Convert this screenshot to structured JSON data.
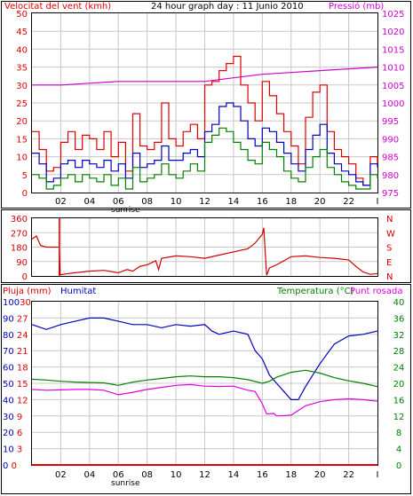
{
  "header": {
    "wind_label": "Velocitat del vent (kmh)",
    "graph_title": "24 hour graph day : 11 Junio 2010",
    "pressure_label": "Pressió (mb)"
  },
  "bottom_header": {
    "rain_label": "Pluja (mm)",
    "humidity_label": "Humitat",
    "temperature_label": "Temperatura (°C)",
    "dewpoint_label": "Punt rosada"
  },
  "x_axis": {
    "labels": [
      "02",
      "04",
      "06",
      "08",
      "10",
      "12",
      "14",
      "16",
      "18",
      "20",
      "22",
      "I"
    ],
    "sunrise_label": "sunrise"
  },
  "colors": {
    "wind_max": "#e00000",
    "wind_avg": "#0000c0",
    "wind_min": "#008000",
    "pressure": "#d000d0",
    "direction": "#d00000",
    "humidity": "#0000c0",
    "temperature": "#008000",
    "dewpoint": "#e000e0",
    "rain": "#e00000",
    "grid": "#c8c8c8"
  },
  "chart_data": [
    {
      "type": "line",
      "title": "24 hour graph day : 11 Junio 2010",
      "xlabel": "",
      "ylabel": "Velocitat del vent (kmh)",
      "y2label": "Pressió (mb)",
      "x_ticks": [
        "02",
        "04",
        "06",
        "08",
        "10",
        "12",
        "14",
        "16",
        "18",
        "20",
        "22",
        "I"
      ],
      "ylim": [
        0,
        50
      ],
      "y_ticks": [
        0,
        5,
        10,
        15,
        20,
        25,
        30,
        35,
        40,
        45,
        50
      ],
      "y2lim": [
        975,
        1025
      ],
      "y2_ticks": [
        975,
        980,
        985,
        990,
        995,
        1000,
        1005,
        1010,
        1015,
        1020,
        1025
      ],
      "x_range_hours": [
        0,
        24
      ],
      "grid": true,
      "series": [
        {
          "axis": "left",
          "color": "#e00000",
          "x": [
            0,
            0.5,
            1,
            1.5,
            2,
            2.5,
            3,
            3.5,
            4,
            4.5,
            5,
            5.5,
            6,
            6.5,
            7,
            7.5,
            8,
            8.5,
            9,
            9.5,
            10,
            10.5,
            11,
            11.5,
            12,
            12.5,
            13,
            13.5,
            14,
            14.5,
            15,
            15.5,
            16,
            16.5,
            17,
            17.5,
            18,
            18.5,
            19,
            19.5,
            20,
            20.5,
            21,
            21.5,
            22,
            22.5,
            23,
            23.5,
            24
          ],
          "values": [
            17,
            12,
            6,
            7,
            14,
            17,
            12,
            16,
            15,
            12,
            17,
            10,
            14,
            6,
            22,
            13,
            12,
            14,
            25,
            15,
            13,
            17,
            19,
            15,
            30,
            31,
            34,
            36,
            38,
            30,
            25,
            20,
            31,
            27,
            22,
            17,
            13,
            8,
            21,
            28,
            30,
            17,
            12,
            10,
            8,
            4,
            2,
            10,
            8
          ]
        },
        {
          "axis": "left",
          "color": "#0000c0",
          "x": [
            0,
            0.5,
            1,
            1.5,
            2,
            2.5,
            3,
            3.5,
            4,
            4.5,
            5,
            5.5,
            6,
            6.5,
            7,
            7.5,
            8,
            8.5,
            9,
            9.5,
            10,
            10.5,
            11,
            11.5,
            12,
            12.5,
            13,
            13.5,
            14,
            14.5,
            15,
            15.5,
            16,
            16.5,
            17,
            17.5,
            18,
            18.5,
            19,
            19.5,
            20,
            20.5,
            21,
            21.5,
            22,
            22.5,
            23,
            23.5,
            24
          ],
          "values": [
            11,
            8,
            3,
            4,
            8,
            9,
            7,
            9,
            8,
            7,
            9,
            6,
            8,
            4,
            11,
            7,
            8,
            9,
            13,
            9,
            9,
            11,
            12,
            10,
            17,
            19,
            24,
            25,
            24,
            20,
            15,
            13,
            18,
            17,
            14,
            11,
            8,
            6,
            12,
            16,
            19,
            11,
            8,
            6,
            5,
            3,
            2,
            8,
            7
          ]
        },
        {
          "axis": "left",
          "color": "#008000",
          "x": [
            0,
            0.5,
            1,
            1.5,
            2,
            2.5,
            3,
            3.5,
            4,
            4.5,
            5,
            5.5,
            6,
            6.5,
            7,
            7.5,
            8,
            8.5,
            9,
            9.5,
            10,
            10.5,
            11,
            11.5,
            12,
            12.5,
            13,
            13.5,
            14,
            14.5,
            15,
            15.5,
            16,
            16.5,
            17,
            17.5,
            18,
            18.5,
            19,
            19.5,
            20,
            20.5,
            21,
            21.5,
            22,
            22.5,
            23,
            23.5,
            24
          ],
          "values": [
            5,
            4,
            1,
            2,
            4,
            5,
            3,
            5,
            4,
            3,
            5,
            2,
            4,
            1,
            7,
            3,
            4,
            5,
            8,
            5,
            4,
            6,
            8,
            6,
            14,
            16,
            18,
            17,
            14,
            12,
            9,
            8,
            14,
            12,
            10,
            6,
            4,
            3,
            7,
            10,
            12,
            7,
            5,
            3,
            2,
            1,
            1,
            5,
            4
          ]
        },
        {
          "axis": "right",
          "color": "#d000d0",
          "x": [
            0,
            2,
            4,
            6,
            8,
            10,
            12,
            13,
            14,
            16,
            18,
            20,
            22,
            24
          ],
          "values": [
            1005,
            1005,
            1005.5,
            1006,
            1006,
            1006,
            1006,
            1006.5,
            1007,
            1008,
            1008.5,
            1009,
            1009.5,
            1010
          ]
        }
      ]
    },
    {
      "type": "line",
      "title": "",
      "xlabel": "",
      "ylabel": "",
      "ylim": [
        0,
        360
      ],
      "y_ticks": [
        0,
        90,
        180,
        270,
        360
      ],
      "y2_ticks": [
        "N",
        "E",
        "S",
        "W",
        "N"
      ],
      "x_range_hours": [
        0,
        24
      ],
      "grid": true,
      "series": [
        {
          "color": "#d00000",
          "x": [
            0,
            0.3,
            0.6,
            1,
            1.9,
            1.95,
            2,
            2.5,
            3,
            4,
            5,
            6,
            6.6,
            7,
            7.5,
            8,
            8.6,
            8.8,
            9,
            10,
            11,
            12,
            13,
            14,
            15,
            15.5,
            16,
            16.1,
            16.3,
            16.5,
            17,
            18,
            19,
            20,
            21,
            22,
            22.5,
            23,
            23.5,
            24
          ],
          "values": [
            230,
            250,
            190,
            180,
            180,
            10,
            8,
            15,
            20,
            30,
            35,
            20,
            40,
            30,
            60,
            70,
            95,
            40,
            110,
            125,
            120,
            110,
            130,
            150,
            170,
            205,
            260,
            300,
            5,
            50,
            70,
            120,
            125,
            115,
            110,
            100,
            60,
            25,
            10,
            15
          ]
        }
      ]
    },
    {
      "type": "line",
      "title": "",
      "xlabel": "",
      "ylabel": "Pluja (mm)",
      "x_ticks": [
        "02",
        "04",
        "06",
        "08",
        "10",
        "12",
        "14",
        "16",
        "18",
        "20",
        "22",
        "I"
      ],
      "y_ticks_rain": [
        0,
        3,
        6,
        9,
        12,
        15,
        18,
        21,
        24,
        27,
        30
      ],
      "y_ticks_humidity": [
        0,
        10,
        20,
        30,
        40,
        50,
        60,
        70,
        80,
        90,
        100
      ],
      "y_ticks_temperature": [
        0,
        4,
        8,
        12,
        16,
        20,
        24,
        28,
        32,
        36,
        40
      ],
      "x_range_hours": [
        0,
        24
      ],
      "grid": true,
      "series": [
        {
          "name": "Humitat",
          "color": "#0000c0",
          "x": [
            0,
            1,
            2,
            3,
            4,
            5,
            6,
            7,
            8,
            9,
            10,
            11,
            12,
            12.5,
            13,
            14,
            15,
            15.5,
            16,
            16.5,
            17,
            17.5,
            18,
            18.5,
            19,
            20,
            21,
            22,
            23,
            24
          ],
          "values": [
            86,
            83,
            86,
            88,
            90,
            90,
            88,
            86,
            86,
            84,
            86,
            85,
            86,
            82,
            80,
            82,
            80,
            70,
            65,
            55,
            50,
            45,
            40,
            40,
            48,
            62,
            74,
            79,
            80,
            82
          ]
        },
        {
          "name": "Temperatura (°C)",
          "color": "#008000",
          "x": [
            0,
            1,
            2,
            3,
            4,
            5,
            6,
            7,
            8,
            9,
            10,
            11,
            12,
            13,
            14,
            15,
            16,
            16.5,
            17,
            18,
            19,
            20,
            21,
            22,
            23,
            24
          ],
          "values": [
            21,
            20.8,
            20.5,
            20.3,
            20.2,
            20.1,
            19.5,
            20.3,
            20.8,
            21.2,
            21.6,
            21.8,
            21.6,
            21.6,
            21.4,
            20.9,
            20,
            20.5,
            21.5,
            22.7,
            23.2,
            22.5,
            21.4,
            20.6,
            20,
            19.2
          ]
        },
        {
          "name": "Punt rosada",
          "color": "#e000e0",
          "x": [
            0,
            1,
            2,
            3,
            4,
            5,
            6,
            7,
            8,
            9,
            10,
            11,
            12,
            13,
            14,
            15,
            15.5,
            16,
            16.3,
            16.8,
            17,
            18,
            19,
            20,
            21,
            22,
            23,
            24
          ],
          "values": [
            18.5,
            18.3,
            18.4,
            18.5,
            18.5,
            18.3,
            17.2,
            17.8,
            18.5,
            19,
            19.5,
            19.7,
            19.3,
            19.2,
            19.3,
            18.3,
            18,
            15,
            12.5,
            12.6,
            12,
            12.2,
            14.5,
            15.5,
            16,
            16.2,
            16,
            15.6
          ]
        },
        {
          "name": "Pluja (mm)",
          "color": "#e00000",
          "x": [
            0,
            24
          ],
          "values": [
            0,
            0
          ]
        }
      ]
    }
  ]
}
